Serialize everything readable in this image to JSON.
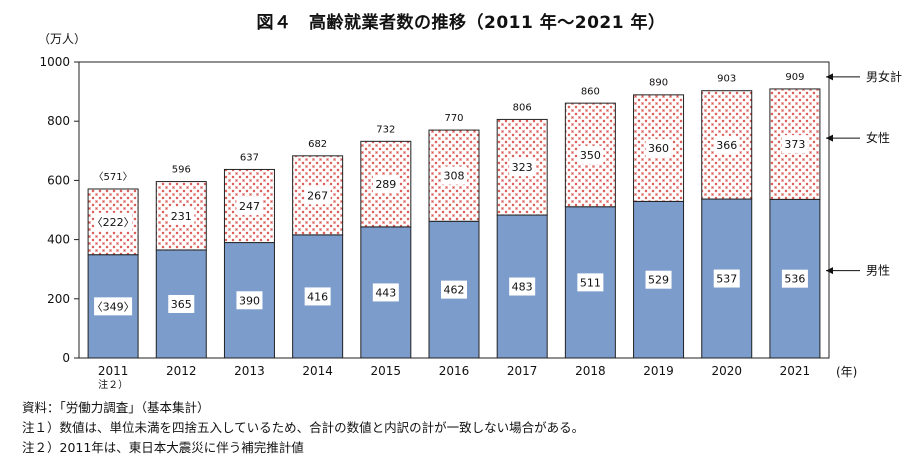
{
  "title": "図４　高齢就業者数の推移（2011 年～2021 年）",
  "y_unit": "（万人）",
  "x_unit": "(年)",
  "chart_data": {
    "type": "bar",
    "stacked": true,
    "categories": [
      "2011",
      "2012",
      "2013",
      "2014",
      "2015",
      "2016",
      "2017",
      "2018",
      "2019",
      "2020",
      "2021"
    ],
    "category_sublabels": {
      "2011": "注２）"
    },
    "series": [
      {
        "name": "男性",
        "values": [
          349,
          365,
          390,
          416,
          443,
          462,
          483,
          511,
          529,
          537,
          536
        ],
        "labels": [
          "〈349〉",
          "365",
          "390",
          "416",
          "443",
          "462",
          "483",
          "511",
          "529",
          "537",
          "536"
        ],
        "color": "#7c9ccc"
      },
      {
        "name": "女性",
        "values": [
          222,
          231,
          247,
          267,
          289,
          308,
          323,
          350,
          360,
          366,
          373
        ],
        "labels": [
          "〈222〉",
          "231",
          "247",
          "267",
          "289",
          "308",
          "323",
          "350",
          "360",
          "366",
          "373"
        ],
        "color": "#d9534f"
      }
    ],
    "totals": {
      "name": "男女計",
      "values": [
        571,
        596,
        637,
        682,
        732,
        770,
        806,
        860,
        890,
        903,
        909
      ],
      "labels": [
        "〈571〉",
        "596",
        "637",
        "682",
        "732",
        "770",
        "806",
        "860",
        "890",
        "903",
        "909"
      ]
    },
    "ylim": [
      0,
      1000
    ],
    "yticks": [
      0,
      200,
      400,
      600,
      800,
      1000
    ],
    "grid": false,
    "legend": "right"
  },
  "notes": [
    "資料：「労働力調査」（基本集計）",
    "注１）数値は、単位未満を四捨五入しているため、合計の数値と内訳の計が一致しない場合がある。",
    "注２）2011年は、東日本大震災に伴う補完推計値"
  ]
}
